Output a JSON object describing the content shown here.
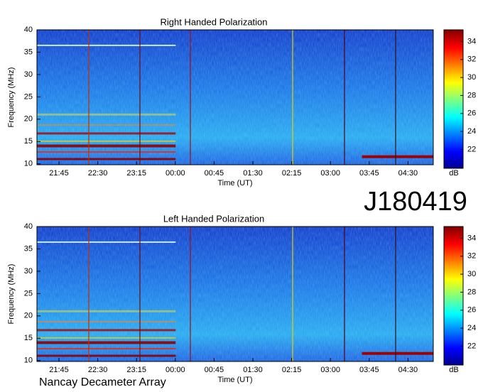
{
  "chart_data": [
    {
      "type": "heatmap",
      "title": "Right Handed Polarization",
      "x_label": "Time (UT)",
      "y_label": "Frequency (MHz)",
      "xticks": [
        "21:45",
        "22:30",
        "23:15",
        "00:00",
        "00:45",
        "01:30",
        "02:15",
        "03:00",
        "03:45",
        "04:30"
      ],
      "ylim": [
        9.8,
        40
      ],
      "yticks": [
        10,
        15,
        20,
        25,
        30,
        35,
        40
      ],
      "colorbar": {
        "label": "dB",
        "lim": [
          19.9,
          35.3
        ],
        "ticks": [
          22,
          24,
          26,
          28,
          30,
          32,
          34
        ]
      }
    },
    {
      "type": "heatmap",
      "title": "Left Handed Polarization",
      "x_label": "Time (UT)",
      "y_label": "Frequency (MHz)",
      "xticks": [
        "21:45",
        "22:30",
        "23:15",
        "00:00",
        "00:45",
        "01:30",
        "02:15",
        "03:00",
        "03:45",
        "04:30"
      ],
      "ylim": [
        9.8,
        40
      ],
      "yticks": [
        10,
        15,
        20,
        25,
        30,
        35,
        40
      ],
      "colorbar": {
        "label": "dB",
        "lim": [
          19.9,
          35.3
        ],
        "ticks": [
          22,
          24,
          26,
          28,
          30,
          32,
          34
        ]
      }
    }
  ],
  "event_id": "J180419",
  "observatory": "Nancay Decameter Array"
}
